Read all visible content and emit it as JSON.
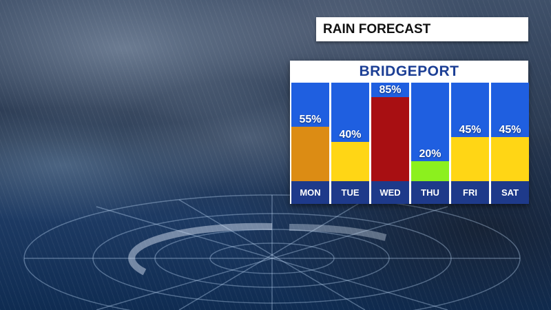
{
  "header": {
    "title": "RAIN FORECAST"
  },
  "chart_data": {
    "type": "bar",
    "title": "BRIDGEPORT",
    "categories": [
      "MON",
      "TUE",
      "WED",
      "THU",
      "FRI",
      "SAT"
    ],
    "values": [
      55,
      40,
      85,
      20,
      45,
      45
    ],
    "value_labels": [
      "55%",
      "40%",
      "85%",
      "20%",
      "45%",
      "45%"
    ],
    "ylim": [
      0,
      100
    ],
    "bar_colors": [
      "#dc8c14",
      "#ffd615",
      "#a80f12",
      "#8cf01e",
      "#ffd615",
      "#ffd615"
    ],
    "column_color": "#1f5fe0",
    "day_band_color": "#1e3a8a",
    "grid": false,
    "legend": "none"
  }
}
